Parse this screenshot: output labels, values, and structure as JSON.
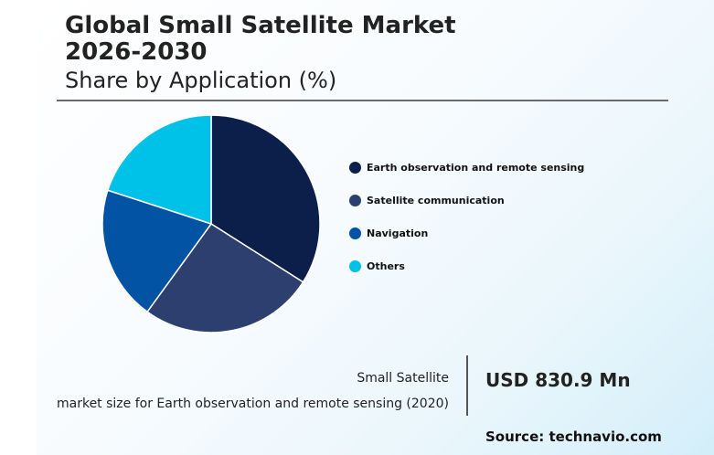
{
  "header": {
    "title_line1": "Global Small Satellite Market",
    "title_line2": "2026-2030",
    "subtitle": "Share by Application (%)"
  },
  "chart_data": {
    "type": "pie",
    "title": "Global Small Satellite Market 2026-2030",
    "subtitle": "Share by Application (%)",
    "legend_position": "right",
    "slices": [
      {
        "label": "Earth observation and remote sensing",
        "value": 34,
        "color": "#0b1f4a"
      },
      {
        "label": "Satellite communication",
        "value": 26,
        "color": "#2c3f6e"
      },
      {
        "label": "Navigation",
        "value": 20,
        "color": "#0353a4"
      },
      {
        "label": "Others",
        "value": 20,
        "color": "#00c1e8"
      }
    ]
  },
  "stat": {
    "label_line1": "Small Satellite",
    "label_line2": "market size for Earth observation and remote sensing (2020)",
    "value": "USD 830.9 Mn"
  },
  "source": "Source: technavio.com"
}
